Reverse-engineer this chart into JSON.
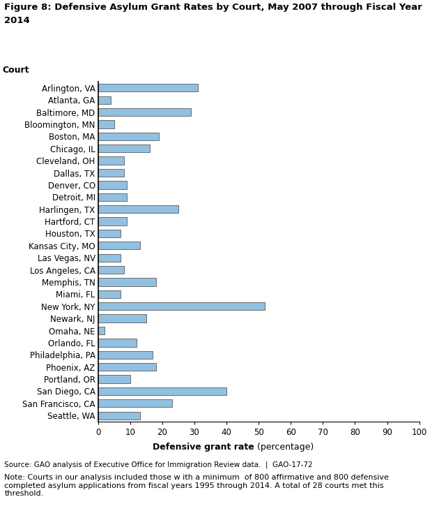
{
  "title_line1": "Figure 8: Defensive Asylum Grant Rates by Court, May 2007 through Fiscal Year",
  "title_line2": "2014",
  "ylabel_label": "Court",
  "xlabel_bold": "Defensive grant rate",
  "xlabel_normal": " (percentage)",
  "source_text": "Source: GAO analysis of Executive Office for Immigration Review data.  |  GAO-17-72",
  "note_text": "Note: Courts in our analysis included those w ith a minimum  of 800 affirmative and 800 defensive\ncompleted asylum applications from fiscal years 1995 through 2014. A total of 28 courts met this\nthreshold.",
  "xlim": [
    0,
    100
  ],
  "xticks": [
    0,
    10,
    20,
    30,
    40,
    50,
    60,
    70,
    80,
    90,
    100
  ],
  "bar_color": "#92C0E0",
  "bar_edgecolor": "#5A5A5A",
  "courts": [
    "Arlington, VA",
    "Atlanta, GA",
    "Baltimore, MD",
    "Bloomington, MN",
    "Boston, MA",
    "Chicago, IL",
    "Cleveland, OH",
    "Dallas, TX",
    "Denver, CO",
    "Detroit, MI",
    "Harlingen, TX",
    "Hartford, CT",
    "Houston, TX",
    "Kansas City, MO",
    "Las Vegas, NV",
    "Los Angeles, CA",
    "Memphis, TN",
    "Miami, FL",
    "New York, NY",
    "Newark, NJ",
    "Omaha, NE",
    "Orlando, FL",
    "Philadelphia, PA",
    "Phoenix, AZ",
    "Portland, OR",
    "San Diego, CA",
    "San Francisco, CA",
    "Seattle, WA"
  ],
  "values": [
    31,
    4,
    29,
    5,
    19,
    16,
    8,
    8,
    9,
    9,
    25,
    9,
    7,
    13,
    7,
    8,
    18,
    7,
    52,
    15,
    2,
    12,
    17,
    18,
    10,
    40,
    23,
    13
  ]
}
